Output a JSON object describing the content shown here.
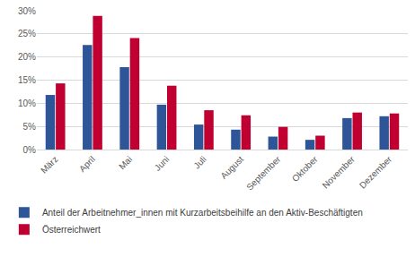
{
  "chart_data": {
    "type": "bar",
    "categories": [
      "März",
      "April",
      "Mai",
      "Juni",
      "Juli",
      "August",
      "September",
      "Oktober",
      "November",
      "Dezember"
    ],
    "series": [
      {
        "name": "Anteil der Arbeitnehmer_innen mit Kurzarbeitsbeihilfe an den Aktiv-Beschäftigten",
        "color": "#2e5597",
        "values": [
          11.8,
          22.6,
          17.8,
          9.7,
          5.4,
          4.3,
          2.8,
          2.1,
          6.8,
          7.2
        ]
      },
      {
        "name": "Österreichwert",
        "color": "#c00030",
        "values": [
          14.3,
          28.9,
          24.1,
          13.8,
          8.5,
          7.4,
          4.9,
          3.0,
          8.0,
          7.8
        ]
      }
    ],
    "ylim": [
      0,
      30
    ],
    "yticks": [
      {
        "value": 0,
        "label": "0%"
      },
      {
        "value": 5,
        "label": "5%"
      },
      {
        "value": 10,
        "label": "10%"
      },
      {
        "value": 15,
        "label": "15%"
      },
      {
        "value": 20,
        "label": "20%"
      },
      {
        "value": 25,
        "label": "25%"
      },
      {
        "value": 30,
        "label": "30%"
      }
    ],
    "grid": true,
    "legend": "bottom"
  }
}
